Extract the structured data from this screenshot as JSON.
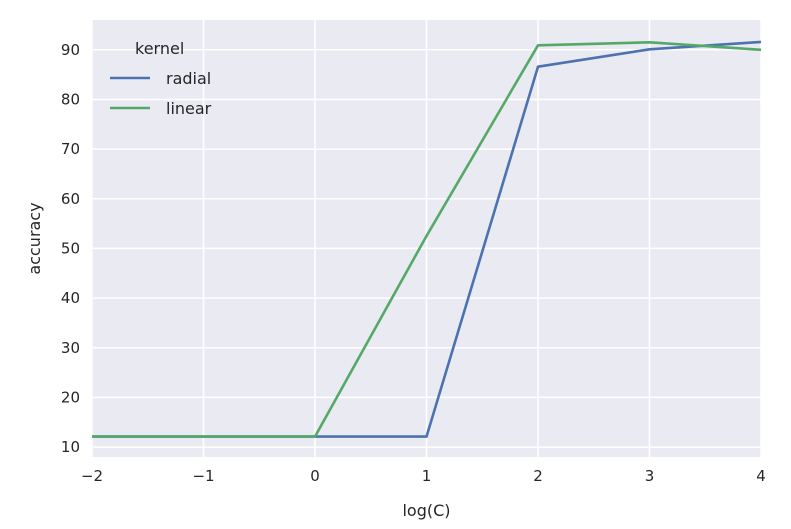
{
  "chart_data": {
    "type": "line",
    "xlabel": "log(C)",
    "ylabel": "accuracy",
    "xlim": [
      -2,
      4
    ],
    "ylim": [
      8,
      96
    ],
    "xticks": [
      -2,
      -1,
      0,
      1,
      2,
      3,
      4
    ],
    "xtick_labels": [
      "−2",
      "−1",
      "0",
      "1",
      "2",
      "3",
      "4"
    ],
    "yticks": [
      10,
      20,
      30,
      40,
      50,
      60,
      70,
      80,
      90
    ],
    "ytick_labels": [
      "10",
      "20",
      "30",
      "40",
      "50",
      "60",
      "70",
      "80",
      "90"
    ],
    "grid": true,
    "legend": {
      "title": "kernel",
      "placement": "top-left"
    },
    "x": [
      -2,
      -1,
      0,
      1,
      2,
      3,
      4
    ],
    "series": [
      {
        "name": "radial",
        "color": "#4c72b0",
        "values": [
          12.1,
          12.1,
          12.1,
          12.1,
          86.6,
          90.1,
          91.6
        ]
      },
      {
        "name": "linear",
        "color": "#55a868",
        "values": [
          12.1,
          12.1,
          12.1,
          52.5,
          90.9,
          91.5,
          90.0
        ]
      }
    ],
    "colors": {
      "background": "#eaeaf2",
      "grid": "#ffffff",
      "text": "#262626"
    }
  }
}
